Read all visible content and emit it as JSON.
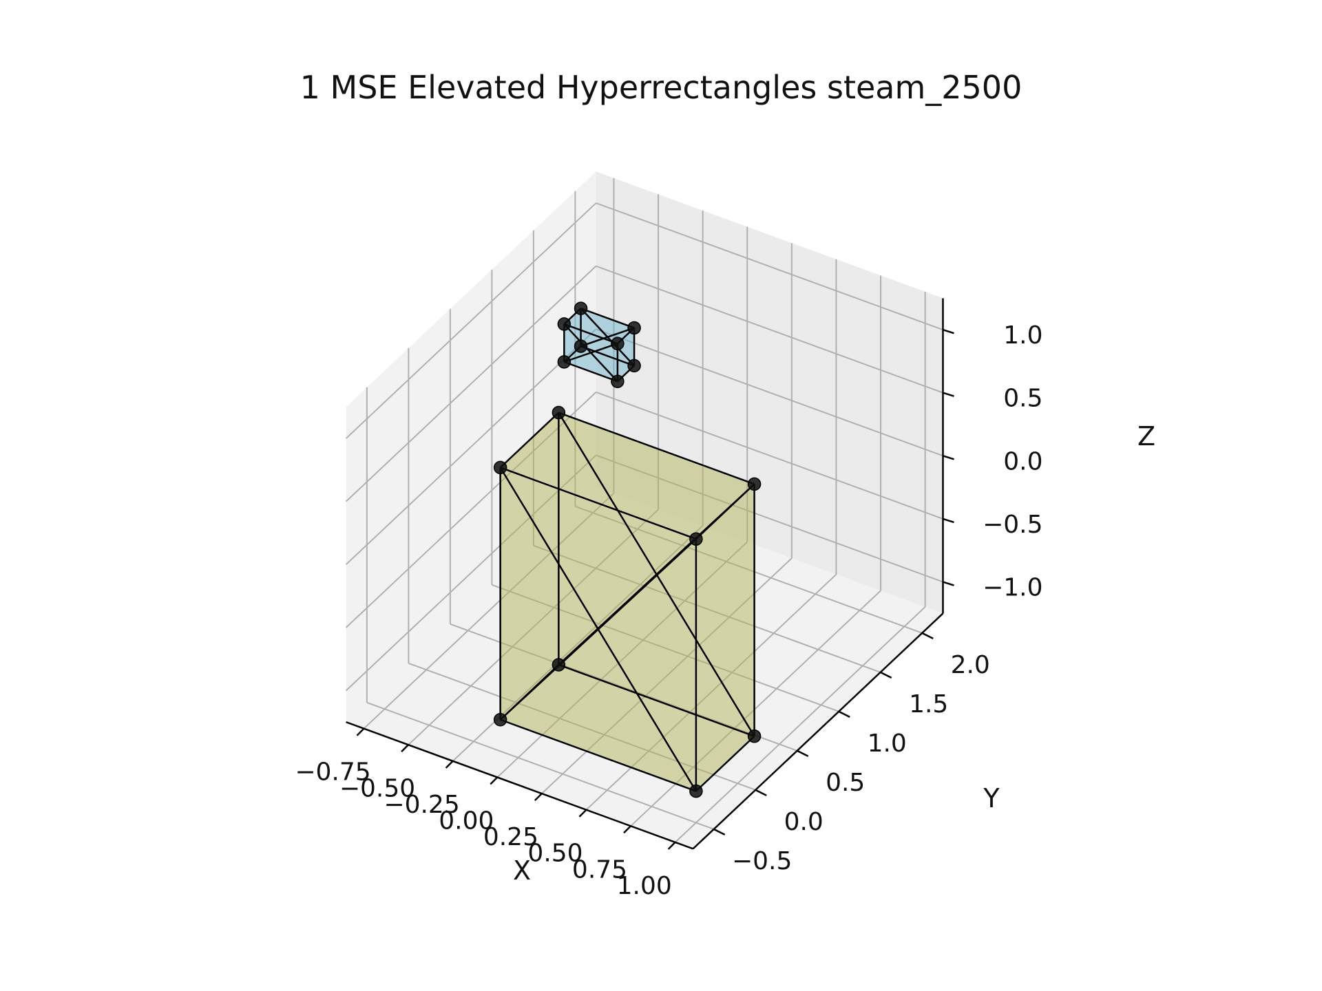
{
  "chart_data": {
    "type": "3d-polyhedra",
    "title": "1 MSE Elevated Hyperrectangles steam_2500",
    "xlabel": "X",
    "ylabel": "Y",
    "zlabel": "Z",
    "x_ticks": [
      "−0.75",
      "−0.50",
      "−0.25",
      "0.00",
      "0.25",
      "0.50",
      "0.75",
      "1.00"
    ],
    "y_ticks": [
      "−0.5",
      "0.0",
      "0.5",
      "1.0",
      "1.5",
      "2.0"
    ],
    "z_ticks": [
      "−1.0",
      "−0.5",
      "0.0",
      "0.5",
      "1.0"
    ],
    "xlim": [
      -0.85,
      1.1
    ],
    "ylim": [
      -0.75,
      2.25
    ],
    "zlim": [
      -1.25,
      1.25
    ],
    "grid": true,
    "shapes": [
      {
        "name": "yellow-box",
        "color": "#b5b55a",
        "edge_color": "#000000",
        "vertices": [
          [
            -0.1,
            -0.5,
            -1.0
          ],
          [
            -0.1,
            -0.5,
            1.0
          ],
          [
            -0.1,
            0.2,
            -1.0
          ],
          [
            -0.1,
            0.2,
            1.0
          ],
          [
            1.0,
            -0.5,
            -1.0
          ],
          [
            1.0,
            -0.5,
            1.0
          ],
          [
            1.0,
            0.2,
            -1.0
          ],
          [
            1.0,
            0.2,
            1.0
          ]
        ]
      },
      {
        "name": "blue-box",
        "color": "#6db2cc",
        "edge_color": "#000000",
        "vertices": [
          [
            -0.35,
            0.8,
            0.9
          ],
          [
            -0.35,
            0.8,
            1.2
          ],
          [
            -0.35,
            1.0,
            0.9
          ],
          [
            -0.35,
            1.0,
            1.2
          ],
          [
            -0.05,
            0.8,
            0.9
          ],
          [
            -0.05,
            0.8,
            1.2
          ],
          [
            -0.05,
            1.0,
            0.9
          ],
          [
            -0.05,
            1.0,
            1.2
          ]
        ]
      }
    ]
  }
}
